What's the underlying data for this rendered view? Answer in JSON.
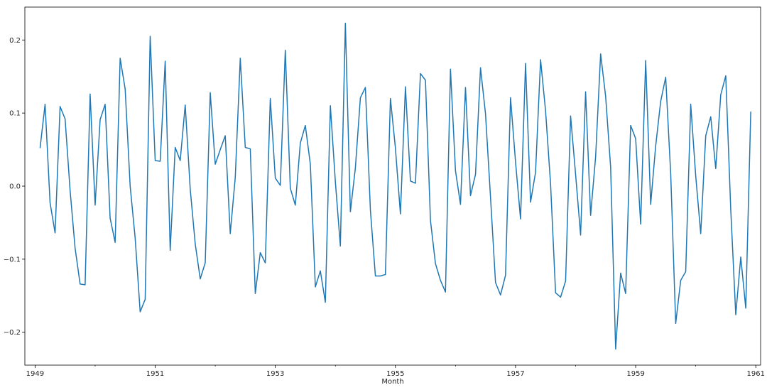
{
  "chart_data": {
    "type": "line",
    "title": "",
    "xlabel": "Month",
    "ylabel": "",
    "grid": false,
    "color": "#1f77b4",
    "xlim": [
      1948.83,
      1961.08
    ],
    "ylim": [
      -0.245,
      0.245
    ],
    "xticks": [
      {
        "value": 1949,
        "label": "1949"
      },
      {
        "value": 1951,
        "label": "1951"
      },
      {
        "value": 1953,
        "label": "1953"
      },
      {
        "value": 1955,
        "label": "1955"
      },
      {
        "value": 1957,
        "label": "1957"
      },
      {
        "value": 1959,
        "label": "1959"
      },
      {
        "value": 1961,
        "label": "1961"
      }
    ],
    "minor_xticks": [
      1950,
      1952,
      1954,
      1956,
      1958,
      1960
    ],
    "yticks": [
      {
        "value": 0.2,
        "label": "0.2"
      },
      {
        "value": 0.1,
        "label": "0.1"
      },
      {
        "value": 0.0,
        "label": "0.0"
      },
      {
        "value": -0.1,
        "label": "−0.1"
      },
      {
        "value": -0.2,
        "label": "−0.2"
      }
    ],
    "series": [
      {
        "x_start": 1949.0833,
        "x_step": 0.08333,
        "values": [
          0.052,
          0.112,
          -0.023,
          -0.064,
          0.109,
          0.092,
          -0.006,
          -0.085,
          -0.134,
          -0.135,
          0.126,
          -0.026,
          0.091,
          0.112,
          -0.044,
          -0.077,
          0.175,
          0.133,
          0.0,
          -0.071,
          -0.172,
          -0.155,
          0.205,
          0.035,
          0.034,
          0.171,
          -0.088,
          0.053,
          0.035,
          0.111,
          -0.004,
          -0.079,
          -0.127,
          -0.105,
          0.128,
          0.03,
          0.05,
          0.069,
          -0.065,
          0.012,
          0.175,
          0.053,
          0.051,
          -0.147,
          -0.091,
          -0.105,
          0.12,
          0.011,
          0.001,
          0.186,
          -0.003,
          -0.026,
          0.059,
          0.083,
          0.03,
          -0.138,
          -0.116,
          -0.159,
          0.11,
          0.006,
          -0.082,
          0.223,
          -0.035,
          0.025,
          0.121,
          0.135,
          -0.033,
          -0.123,
          -0.123,
          -0.121,
          0.12,
          0.052,
          -0.038,
          0.136,
          0.007,
          0.004,
          0.154,
          0.145,
          -0.047,
          -0.106,
          -0.129,
          -0.145,
          0.16,
          0.021,
          -0.025,
          0.135,
          -0.013,
          0.016,
          0.162,
          0.099,
          -0.015,
          -0.132,
          -0.149,
          -0.122,
          0.121,
          0.033,
          -0.045,
          0.168,
          -0.022,
          0.019,
          0.173,
          0.103,
          0.003,
          -0.146,
          -0.152,
          -0.13,
          0.096,
          0.016,
          -0.067,
          0.129,
          -0.04,
          0.04,
          0.181,
          0.123,
          0.026,
          -0.223,
          -0.119,
          -0.147,
          0.083,
          0.065,
          -0.052,
          0.172,
          -0.025,
          0.055,
          0.116,
          0.149,
          0.017,
          -0.188,
          -0.129,
          -0.117,
          0.112,
          0.014,
          -0.065,
          0.069,
          0.095,
          0.024,
          0.125,
          0.151,
          -0.032,
          -0.176,
          -0.097,
          -0.167,
          0.102
        ]
      }
    ]
  }
}
